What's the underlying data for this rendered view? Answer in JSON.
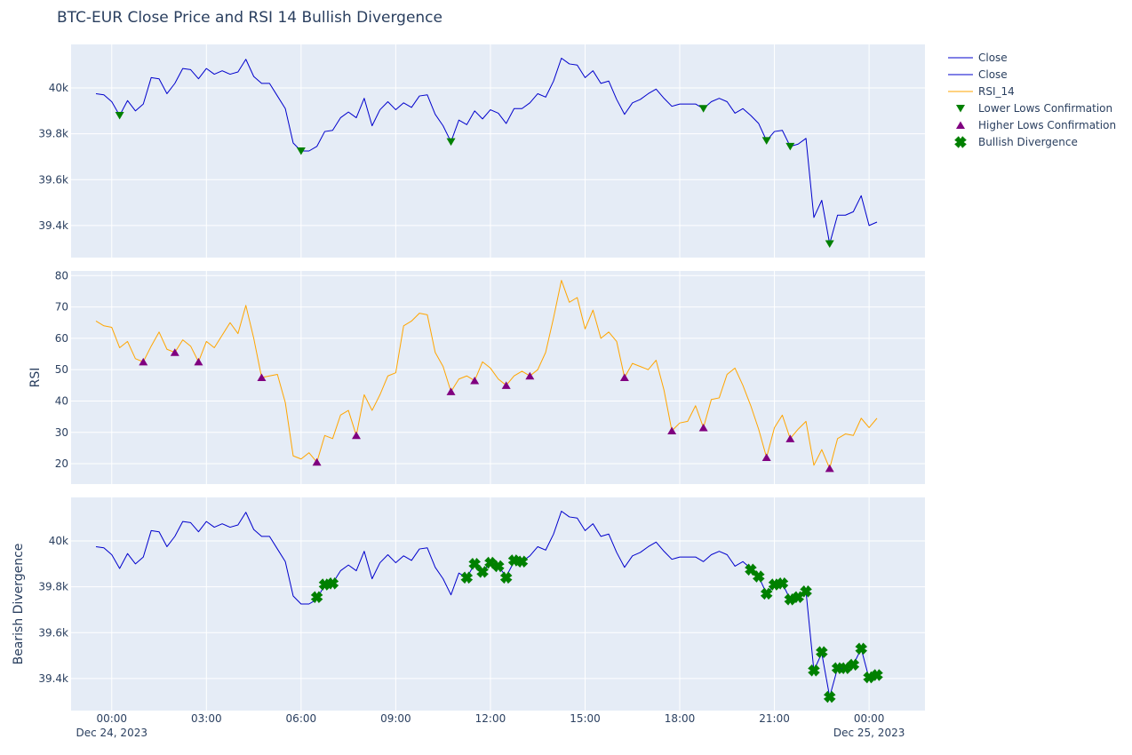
{
  "chart_data": {
    "type": "line",
    "title": "BTC-EUR Close Price and RSI 14 Bullish Divergence",
    "x_start": "2023-12-23 23:30",
    "x_end": "2023-12-25 00:00",
    "x_step": "15min",
    "x_tick_labels": [
      [
        "00:00",
        "Dec 24, 2023"
      ],
      [
        "03:00",
        ""
      ],
      [
        "06:00",
        ""
      ],
      [
        "09:00",
        ""
      ],
      [
        "12:00",
        ""
      ],
      [
        "15:00",
        ""
      ],
      [
        "18:00",
        ""
      ],
      [
        "21:00",
        ""
      ],
      [
        "00:00",
        "Dec 25, 2023"
      ]
    ],
    "panels": [
      {
        "name": "price",
        "ylabel": "",
        "ylim": [
          39260,
          40190
        ],
        "yticks": [
          39400,
          39600,
          39800,
          40000
        ],
        "ytick_labels": [
          "39.4k",
          "39.6k",
          "39.8k",
          "40k"
        ]
      },
      {
        "name": "rsi",
        "ylabel": "RSI",
        "ylim": [
          13.5,
          81.5
        ],
        "yticks": [
          20,
          30,
          40,
          50,
          60,
          70,
          80
        ],
        "ytick_labels": [
          "20",
          "30",
          "40",
          "50",
          "60",
          "70",
          "80"
        ]
      },
      {
        "name": "divergence",
        "ylabel": "Bearish Divergence",
        "ylim": [
          39260,
          40190
        ],
        "yticks": [
          39400,
          39600,
          39800,
          40000
        ],
        "ytick_labels": [
          "39.4k",
          "39.6k",
          "39.8k",
          "40k"
        ]
      }
    ],
    "series": [
      {
        "name": "Close",
        "type": "line",
        "color": "#0000cc",
        "panel": "price",
        "values": [
          39975,
          39970,
          39940,
          39880,
          39945,
          39900,
          39930,
          40045,
          40040,
          39975,
          40020,
          40085,
          40080,
          40040,
          40085,
          40060,
          40075,
          40060,
          40070,
          40125,
          40050,
          40020,
          40020,
          39965,
          39910,
          39760,
          39725,
          39725,
          39745,
          39810,
          39815,
          39870,
          39895,
          39870,
          39955,
          39835,
          39905,
          39940,
          39905,
          39935,
          39915,
          39965,
          39970,
          39885,
          39835,
          39765,
          39860,
          39840,
          39900,
          39865,
          39905,
          39890,
          39845,
          39910,
          39910,
          39935,
          39975,
          39960,
          40030,
          40130,
          40105,
          40100,
          40045,
          40075,
          40020,
          40030,
          39950,
          39885,
          39935,
          39950,
          39975,
          39995,
          39955,
          39920,
          39930,
          39930,
          39930,
          39910,
          39940,
          39955,
          39940,
          39890,
          39910,
          39880,
          39845,
          39770,
          39810,
          39815,
          39745,
          39755,
          39780,
          39435,
          39510,
          39320,
          39445,
          39445,
          39460,
          39530,
          39400,
          39415
        ]
      },
      {
        "name": "Close",
        "type": "line",
        "color": "#0000cc",
        "panel": "divergence",
        "values": [
          39975,
          39970,
          39940,
          39880,
          39945,
          39900,
          39930,
          40045,
          40040,
          39975,
          40020,
          40085,
          40080,
          40040,
          40085,
          40060,
          40075,
          40060,
          40070,
          40125,
          40050,
          40020,
          40020,
          39965,
          39910,
          39760,
          39725,
          39725,
          39745,
          39810,
          39815,
          39870,
          39895,
          39870,
          39955,
          39835,
          39905,
          39940,
          39905,
          39935,
          39915,
          39965,
          39970,
          39885,
          39835,
          39765,
          39860,
          39840,
          39900,
          39865,
          39905,
          39890,
          39845,
          39910,
          39910,
          39935,
          39975,
          39960,
          40030,
          40130,
          40105,
          40100,
          40045,
          40075,
          40020,
          40030,
          39950,
          39885,
          39935,
          39950,
          39975,
          39995,
          39955,
          39920,
          39930,
          39930,
          39930,
          39910,
          39940,
          39955,
          39940,
          39890,
          39910,
          39880,
          39845,
          39770,
          39810,
          39815,
          39745,
          39755,
          39780,
          39435,
          39510,
          39320,
          39445,
          39445,
          39460,
          39530,
          39400,
          39415
        ]
      },
      {
        "name": "RSI_14",
        "type": "line",
        "color": "#ffa500",
        "panel": "rsi",
        "values": [
          65.5,
          64,
          63.5,
          57,
          59,
          53.5,
          52.5,
          57.5,
          62,
          56.5,
          55.5,
          59.5,
          57.5,
          52.5,
          59,
          57,
          61,
          65,
          61.5,
          70.5,
          60,
          47.5,
          48,
          48.5,
          39.5,
          22.5,
          21.5,
          23.5,
          20.5,
          29,
          28,
          35.5,
          37,
          29,
          42,
          37,
          42,
          48,
          49,
          64,
          65.5,
          68,
          67.5,
          55.5,
          51,
          43,
          47,
          48,
          46.5,
          52.5,
          50.5,
          47,
          45,
          48,
          49.5,
          48,
          50,
          55.5,
          66.5,
          78.5,
          71.5,
          73,
          63,
          69,
          60,
          62,
          59,
          47.5,
          52,
          51,
          50,
          53,
          43.5,
          30.5,
          33,
          33.5,
          38.5,
          31.5,
          40.5,
          41,
          48.5,
          50.5,
          45,
          38.5,
          31,
          22,
          31.5,
          35.5,
          28,
          31,
          33.5,
          19.5,
          24.5,
          18.5,
          28,
          29.5,
          29,
          34.5,
          31.5,
          34.5
        ]
      },
      {
        "name": "Lower Lows Confirmation",
        "type": "scatter",
        "marker": "triangle-down",
        "color": "#008000",
        "panel": "price",
        "points": [
          [
            3,
            39880
          ],
          [
            26,
            39725
          ],
          [
            45,
            39765
          ],
          [
            77,
            39910
          ],
          [
            85,
            39770
          ],
          [
            88,
            39745
          ],
          [
            93,
            39320
          ]
        ]
      },
      {
        "name": "Higher Lows Confirmation",
        "type": "scatter",
        "marker": "triangle-up",
        "color": "#800080",
        "panel": "rsi",
        "points": [
          [
            6,
            52.5
          ],
          [
            10,
            55.5
          ],
          [
            13,
            52.5
          ],
          [
            21,
            47.5
          ],
          [
            28,
            20.5
          ],
          [
            33,
            29
          ],
          [
            45,
            43
          ],
          [
            48,
            46.5
          ],
          [
            52,
            45
          ],
          [
            55,
            48
          ],
          [
            67,
            47.5
          ],
          [
            73,
            30.5
          ],
          [
            77,
            31.5
          ],
          [
            85,
            22
          ],
          [
            88,
            28
          ],
          [
            93,
            18.5
          ]
        ]
      },
      {
        "name": "Bullish Divergence",
        "type": "scatter",
        "marker": "x",
        "color": "#008000",
        "panel": "divergence",
        "points": [
          [
            28,
            39755
          ],
          [
            29,
            39810
          ],
          [
            30,
            39815
          ],
          [
            47,
            39840
          ],
          [
            48,
            39900
          ],
          [
            49,
            39865
          ],
          [
            50,
            39905
          ],
          [
            51,
            39890
          ],
          [
            52,
            39840
          ],
          [
            53,
            39915
          ],
          [
            54,
            39910
          ],
          [
            83,
            39875
          ],
          [
            84,
            39845
          ],
          [
            85,
            39770
          ],
          [
            86,
            39810
          ],
          [
            87,
            39815
          ],
          [
            88,
            39745
          ],
          [
            89,
            39755
          ],
          [
            90,
            39780
          ],
          [
            91,
            39435
          ],
          [
            92,
            39515
          ],
          [
            93,
            39320
          ],
          [
            94,
            39445
          ],
          [
            95,
            39445
          ],
          [
            96,
            39460
          ],
          [
            97,
            39530
          ],
          [
            98,
            39405
          ],
          [
            99,
            39415
          ]
        ]
      }
    ],
    "legend": {
      "placement": "right",
      "entries": [
        "Close",
        "Close",
        "RSI_14",
        "Lower Lows Confirmation",
        "Higher Lows Confirmation",
        "Bullish Divergence"
      ]
    },
    "grid": true,
    "plot_bgcolor": "#e5ecf6"
  }
}
